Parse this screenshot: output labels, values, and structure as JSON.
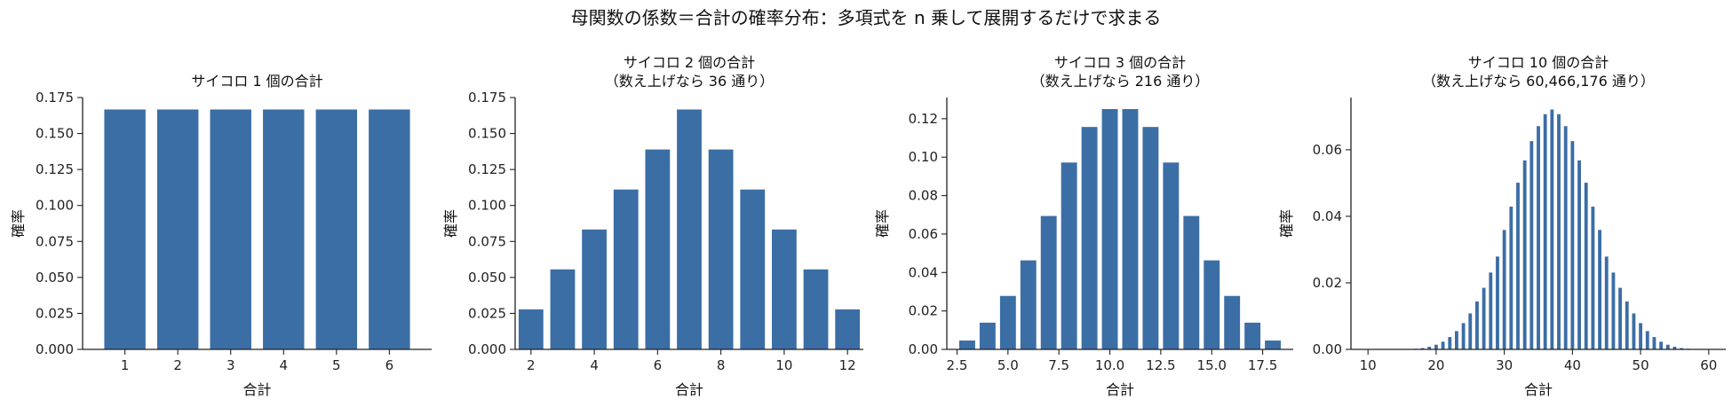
{
  "figure": {
    "title": "母関数の係数＝合計の確率分布：多項式を n 乗して展開するだけで求まる"
  },
  "colors": {
    "bar": "#3b6ea5",
    "axis": "#222222"
  },
  "chart_data": [
    {
      "type": "bar",
      "title": "サイコロ 1 個の合計",
      "subtitle": "",
      "xlabel": "合計",
      "ylabel": "確率",
      "x": [
        1,
        2,
        3,
        4,
        5,
        6
      ],
      "values": [
        0.1667,
        0.1667,
        0.1667,
        0.1667,
        0.1667,
        0.1667
      ],
      "xlim": [
        0.2,
        6.8
      ],
      "ylim": [
        0,
        0.175
      ],
      "xticks": [
        "1",
        "2",
        "3",
        "4",
        "5",
        "6"
      ],
      "yticks": [
        "0.000",
        "0.025",
        "0.050",
        "0.075",
        "0.100",
        "0.125",
        "0.150",
        "0.175"
      ],
      "grid": false
    },
    {
      "type": "bar",
      "title": "サイコロ 2 個の合計",
      "subtitle": "（数え上げなら 36 通り）",
      "xlabel": "合計",
      "ylabel": "確率",
      "x": [
        2,
        3,
        4,
        5,
        6,
        7,
        8,
        9,
        10,
        11,
        12
      ],
      "values": [
        0.0278,
        0.0556,
        0.0833,
        0.1111,
        0.1389,
        0.1667,
        0.1389,
        0.1111,
        0.0833,
        0.0556,
        0.0278
      ],
      "xlim": [
        1.5,
        12.5
      ],
      "ylim": [
        0,
        0.175
      ],
      "xticks": [
        "2",
        "4",
        "6",
        "8",
        "10",
        "12"
      ],
      "yticks": [
        "0.000",
        "0.025",
        "0.050",
        "0.075",
        "0.100",
        "0.125",
        "0.150",
        "0.175"
      ],
      "grid": false
    },
    {
      "type": "bar",
      "title": "サイコロ 3 個の合計",
      "subtitle": "（数え上げなら 216 通り）",
      "xlabel": "合計",
      "ylabel": "確率",
      "x": [
        3,
        4,
        5,
        6,
        7,
        8,
        9,
        10,
        11,
        12,
        13,
        14,
        15,
        16,
        17,
        18
      ],
      "values": [
        0.0046,
        0.0139,
        0.0278,
        0.0463,
        0.0694,
        0.0972,
        0.1157,
        0.125,
        0.125,
        0.1157,
        0.0972,
        0.0694,
        0.0463,
        0.0278,
        0.0139,
        0.0046
      ],
      "xlim": [
        2.0,
        19.0
      ],
      "ylim": [
        0,
        0.131
      ],
      "xticks": [
        "2.5",
        "5.0",
        "7.5",
        "10.0",
        "12.5",
        "15.0",
        "17.5"
      ],
      "yticks": [
        "0.00",
        "0.02",
        "0.04",
        "0.06",
        "0.08",
        "0.10",
        "0.12"
      ],
      "grid": false
    },
    {
      "type": "bar",
      "title": "サイコロ 10 個の合計",
      "subtitle": "（数え上げなら 60,466,176 通り）",
      "xlabel": "合計",
      "ylabel": "確率",
      "x": [
        10,
        11,
        12,
        13,
        14,
        15,
        16,
        17,
        18,
        19,
        20,
        21,
        22,
        23,
        24,
        25,
        26,
        27,
        28,
        29,
        30,
        31,
        32,
        33,
        34,
        35,
        36,
        37,
        38,
        39,
        40,
        41,
        42,
        43,
        44,
        45,
        46,
        47,
        48,
        49,
        50,
        51,
        52,
        53,
        54,
        55,
        56,
        57,
        58,
        59,
        60
      ],
      "values": [
        0.0,
        0.0,
        0.0,
        0.0,
        0.0,
        0.0,
        0.0001,
        0.0002,
        0.0004,
        0.0008,
        0.0014,
        0.0023,
        0.0037,
        0.0055,
        0.0079,
        0.0108,
        0.0144,
        0.0185,
        0.0231,
        0.0279,
        0.0359,
        0.0429,
        0.0501,
        0.0568,
        0.0626,
        0.0671,
        0.0707,
        0.0721,
        0.0707,
        0.0671,
        0.0626,
        0.0568,
        0.0501,
        0.0429,
        0.0359,
        0.0279,
        0.0231,
        0.0185,
        0.0144,
        0.0108,
        0.0079,
        0.0055,
        0.0037,
        0.0023,
        0.0014,
        0.0008,
        0.0004,
        0.0002,
        0.0001,
        0.0,
        0.0
      ],
      "xlim": [
        7.5,
        62.5
      ],
      "ylim": [
        0,
        0.0757
      ],
      "xticks": [
        "10",
        "20",
        "30",
        "40",
        "50",
        "60"
      ],
      "yticks": [
        "0.00",
        "0.02",
        "0.04",
        "0.06"
      ],
      "grid": false
    }
  ]
}
